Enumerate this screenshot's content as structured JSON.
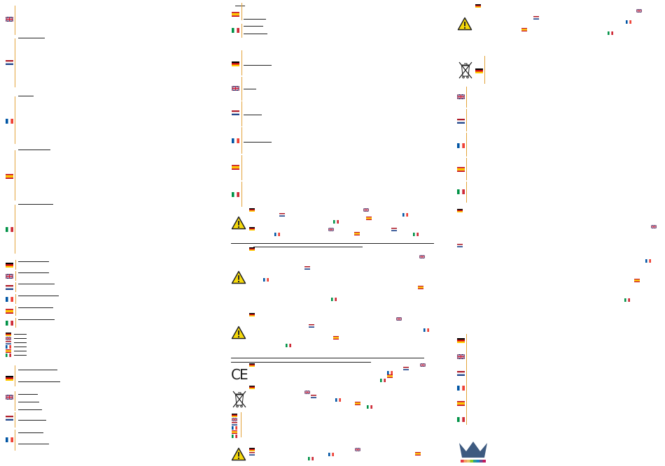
{
  "document": {
    "language_flags": [
      "de",
      "gb",
      "nl",
      "fr",
      "es",
      "it"
    ],
    "colors": {
      "separator": "#e3a33a",
      "text": "#222222",
      "flag_de": [
        "#000000",
        "#dd0000",
        "#ffce00"
      ],
      "flag_nl": [
        "#ae1c28",
        "#ffffff",
        "#21468b"
      ],
      "flag_fr": [
        "#0055a4",
        "#ffffff",
        "#ef4135"
      ],
      "flag_es": [
        "#c60b1e",
        "#ffc400",
        "#c60b1e"
      ],
      "flag_it": [
        "#009246",
        "#ffffff",
        "#ce2b37"
      ],
      "crown": "#3d5a80"
    },
    "icons": [
      "warning-icon",
      "ce-mark-icon",
      "weee-bin-icon",
      "crown-logo-icon"
    ],
    "ce_mark": "CE"
  }
}
